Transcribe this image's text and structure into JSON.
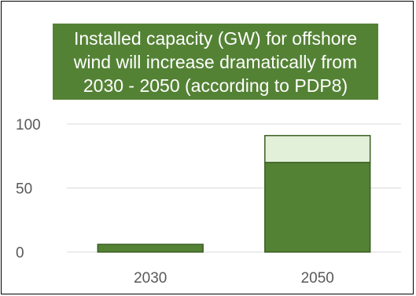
{
  "chart_data": {
    "type": "bar",
    "stacked": true,
    "title": "Installed capacity (GW) for offshore\nwind will increase dramatically from\n2030 - 2050 (according to PDP8)",
    "categories": [
      "2030",
      "2050"
    ],
    "series": [
      {
        "values": [
          6,
          70
        ],
        "color": "#548235"
      },
      {
        "values": [
          0,
          21
        ],
        "color": "#e2f0d9"
      }
    ],
    "yticks": [
      0,
      50,
      100
    ],
    "ylim": [
      0,
      100
    ],
    "grid": true,
    "legend": "none"
  }
}
